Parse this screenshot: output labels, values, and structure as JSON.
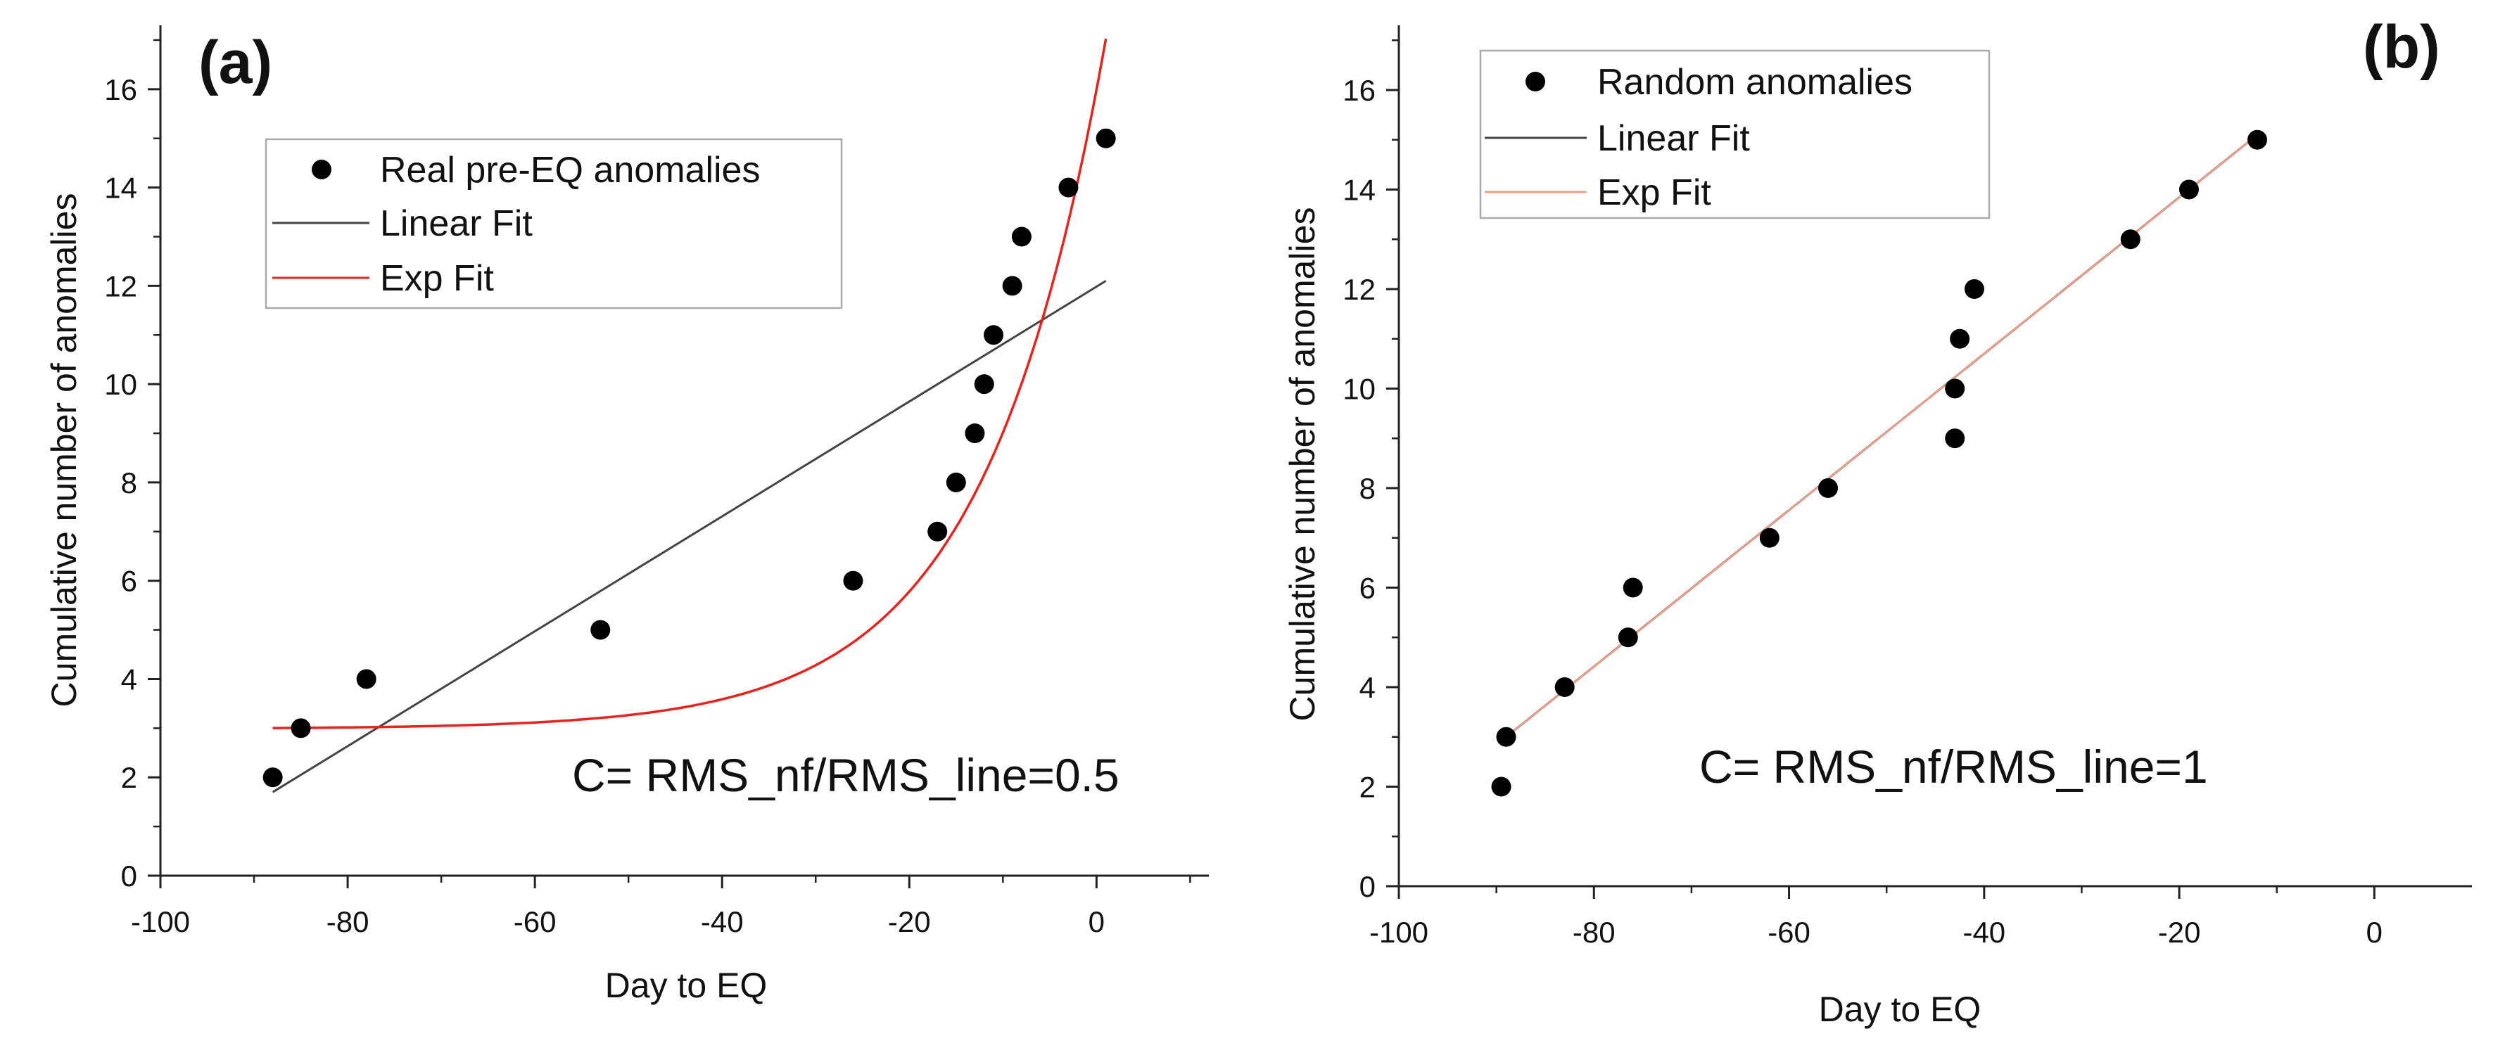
{
  "chart_data": [
    {
      "type": "scatter",
      "panel_label": "(a)",
      "xlabel": "Day to EQ",
      "ylabel": "Cumulative number of anomalies",
      "xlim": [
        -100,
        12
      ],
      "ylim": [
        0,
        17.3
      ],
      "xticks": [
        -100,
        -80,
        -60,
        -40,
        -20,
        0
      ],
      "yticks": [
        0,
        2,
        4,
        6,
        8,
        10,
        12,
        14,
        16
      ],
      "legend": [
        "Real pre-EQ anomalies",
        "Linear Fit",
        "Exp Fit"
      ],
      "annotation": "C= RMS_nf/RMS_line=0.5",
      "colors": {
        "points": "#000000",
        "linear": "#444444",
        "exp": "#e8221d"
      },
      "series": [
        {
          "name": "Real pre-EQ anomalies",
          "x": [
            -88,
            -85,
            -78,
            -53,
            -26,
            -17,
            -15,
            -13,
            -12,
            -11,
            -9,
            -8,
            -3,
            1
          ],
          "y": [
            2,
            3,
            4,
            5,
            6,
            7,
            8,
            9,
            10,
            11,
            12,
            13,
            14,
            15
          ]
        },
        {
          "name": "Linear Fit",
          "x": [
            -88,
            1
          ],
          "y": [
            1.7,
            12.1
          ]
        },
        {
          "name": "Exp Fit",
          "y0": 2.988,
          "A": 13.0,
          "t": 13.0,
          "x_range": [
            -88,
            1
          ]
        }
      ]
    },
    {
      "type": "scatter",
      "panel_label": "(b)",
      "xlabel": "Day to EQ",
      "ylabel": "Cumulative number of anomalies",
      "xlim": [
        -100,
        10
      ],
      "ylim": [
        0,
        17.3
      ],
      "xticks": [
        -100,
        -80,
        -60,
        -40,
        -20,
        0
      ],
      "yticks": [
        0,
        2,
        4,
        6,
        8,
        10,
        12,
        14,
        16
      ],
      "legend": [
        "Random anomalies",
        "Linear Fit",
        "Exp Fit"
      ],
      "annotation": "C= RMS_nf/RMS_line=1",
      "colors": {
        "points": "#000000",
        "linear": "#444444",
        "exp": "#f0a08a"
      },
      "series": [
        {
          "name": "Random anomalies",
          "x": [
            -89.5,
            -89,
            -83,
            -76.5,
            -76,
            -62,
            -56,
            -43,
            -43,
            -42.5,
            -41,
            -25,
            -19,
            -12
          ],
          "y": [
            2,
            3,
            4,
            5,
            6,
            7,
            8,
            9,
            10,
            11,
            12,
            13,
            14,
            15
          ]
        },
        {
          "name": "Linear Fit",
          "x": [
            -89,
            -12
          ],
          "y": [
            3.0,
            15.1
          ]
        },
        {
          "name": "Exp Fit",
          "x": [
            -89,
            -12
          ],
          "y": [
            3.0,
            15.1
          ]
        }
      ]
    }
  ]
}
